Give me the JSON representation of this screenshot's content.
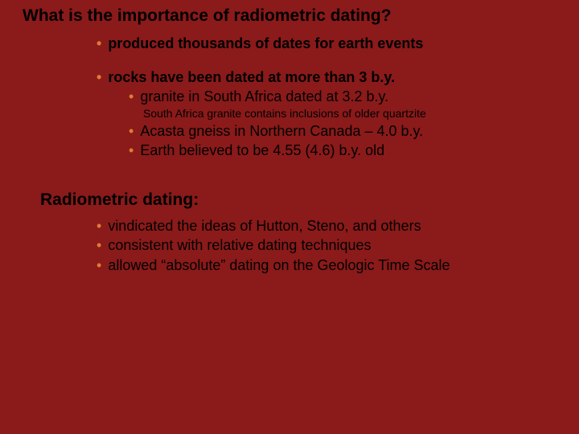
{
  "background_color": "#8b1a1a",
  "bullet_color": "#e07b33",
  "text_color": "#000000",
  "title": "What is the importance of radiometric dating?",
  "block1": {
    "item1": "produced thousands of dates for earth events",
    "item2": "rocks have been dated at more than 3 b.y.",
    "sub1": "granite in South Africa dated at 3.2 b.y.",
    "note": "South Africa granite contains inclusions of older quartzite",
    "sub2": "Acasta gneiss in Northern Canada – 4.0 b.y.",
    "sub3": "Earth believed to be 4.55 (4.6) b.y. old"
  },
  "section2": {
    "title": "Radiometric dating:",
    "item1": "vindicated the ideas of Hutton, Steno, and others",
    "item2": "consistent with relative dating techniques",
    "item3": "allowed “absolute” dating on the Geologic Time Scale"
  }
}
